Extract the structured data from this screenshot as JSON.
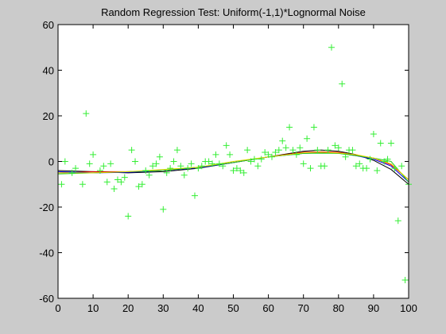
{
  "chart_data": {
    "type": "scatter",
    "title": "Random Regression Test: Uniform(-1,1)*Lognormal Noise",
    "xlim": [
      0,
      100
    ],
    "ylim": [
      -60,
      60
    ],
    "x_ticks": [
      0,
      10,
      20,
      30,
      40,
      50,
      60,
      70,
      80,
      90,
      100
    ],
    "y_ticks": [
      -60,
      -40,
      -20,
      0,
      20,
      40,
      60
    ],
    "grid": false,
    "colors": {
      "background": "#cbcbcb",
      "axes_background": "#ffffff",
      "points": "#33ee33",
      "fit_black": "#000000",
      "fit_red": "#ee0000",
      "fit_blue": "#0000ee",
      "fit_green": "#22cc22",
      "fit_yellow": "#dddd00"
    },
    "series": [
      {
        "marker": "plus",
        "color": "#33ee33",
        "x": [
          1,
          2,
          4,
          5,
          7,
          8,
          9,
          10,
          12,
          13,
          14,
          15,
          16,
          17,
          18,
          19,
          20,
          21,
          22,
          23,
          24,
          25,
          26,
          27,
          28,
          29,
          30,
          31,
          32,
          33,
          34,
          35,
          36,
          37,
          38,
          39,
          40,
          41,
          42,
          43,
          44,
          45,
          46,
          47,
          48,
          49,
          50,
          51,
          52,
          53,
          54,
          55,
          56,
          57,
          58,
          59,
          60,
          61,
          62,
          63,
          64,
          65,
          66,
          67,
          68,
          69,
          70,
          71,
          72,
          73,
          74,
          75,
          76,
          77,
          78,
          79,
          80,
          81,
          82,
          83,
          84,
          85,
          86,
          87,
          88,
          89,
          90,
          91,
          92,
          93,
          94,
          95,
          96,
          97,
          98,
          99,
          100
        ],
        "y": [
          -10,
          0,
          -5,
          -3,
          -10,
          21,
          -1,
          3,
          -4,
          -2,
          -9,
          -1,
          -12,
          -8,
          -9,
          -7,
          -24,
          5,
          0,
          -11,
          -10,
          -4,
          -6,
          -2,
          -1,
          2,
          -21,
          -5,
          -3,
          0,
          5,
          -2,
          -6,
          -3,
          -1,
          -15,
          -3,
          -2,
          0,
          0,
          -1,
          3,
          -1,
          -2,
          7,
          3,
          -4,
          -3,
          -4,
          -5,
          5,
          0,
          1,
          -2,
          1,
          4,
          3,
          2,
          4,
          5,
          9,
          6,
          15,
          5,
          3,
          6,
          -1,
          10,
          -3,
          15,
          5,
          -2,
          -2,
          5,
          50,
          7,
          6,
          34,
          2,
          5,
          5,
          -2,
          -1,
          -3,
          -3,
          1,
          12,
          -4,
          8,
          0,
          1,
          8,
          -3,
          -26,
          -2,
          -52,
          -10
        ]
      }
    ],
    "fits": [
      {
        "color": "#000000",
        "x": [
          0,
          10,
          20,
          30,
          40,
          50,
          60,
          70,
          75,
          80,
          85,
          90,
          95,
          100
        ],
        "y": [
          -4,
          -4.5,
          -5,
          -4.5,
          -3,
          -0.5,
          2,
          4.5,
          5,
          4.5,
          3,
          0.5,
          -3.5,
          -10
        ]
      },
      {
        "color": "#ee0000",
        "x": [
          0,
          10,
          20,
          30,
          40,
          50,
          60,
          70,
          75,
          80,
          85,
          90,
          95,
          100
        ],
        "y": [
          -5,
          -4.5,
          -4.5,
          -4,
          -2.5,
          -0.5,
          2,
          4,
          4.2,
          4,
          2.8,
          1.5,
          -1.5,
          -8
        ]
      },
      {
        "color": "#0000ee",
        "x": [
          0,
          10,
          20,
          30,
          40,
          50,
          60,
          70,
          75,
          80,
          85,
          90,
          95,
          100
        ],
        "y": [
          -4.5,
          -5,
          -4.8,
          -4,
          -2.8,
          -0.5,
          2,
          3.5,
          3.8,
          3.6,
          2.5,
          1,
          -2,
          -9
        ]
      },
      {
        "color": "#22cc22",
        "x": [
          0,
          10,
          20,
          30,
          40,
          50,
          60,
          70,
          75,
          80,
          85,
          90,
          95,
          100
        ],
        "y": [
          -5.5,
          -5,
          -4.5,
          -4,
          -2.5,
          -0.5,
          2,
          3.5,
          3.6,
          3.5,
          2.5,
          1.5,
          0,
          -9
        ]
      },
      {
        "color": "#dddd00",
        "x": [
          0,
          10,
          20,
          30,
          40,
          50,
          60,
          70,
          75,
          80,
          85,
          90,
          95,
          100
        ],
        "y": [
          -5,
          -5,
          -4.5,
          -3.5,
          -2.5,
          0,
          2,
          3.8,
          4,
          3.7,
          3,
          1.5,
          -1,
          -8
        ]
      }
    ]
  }
}
